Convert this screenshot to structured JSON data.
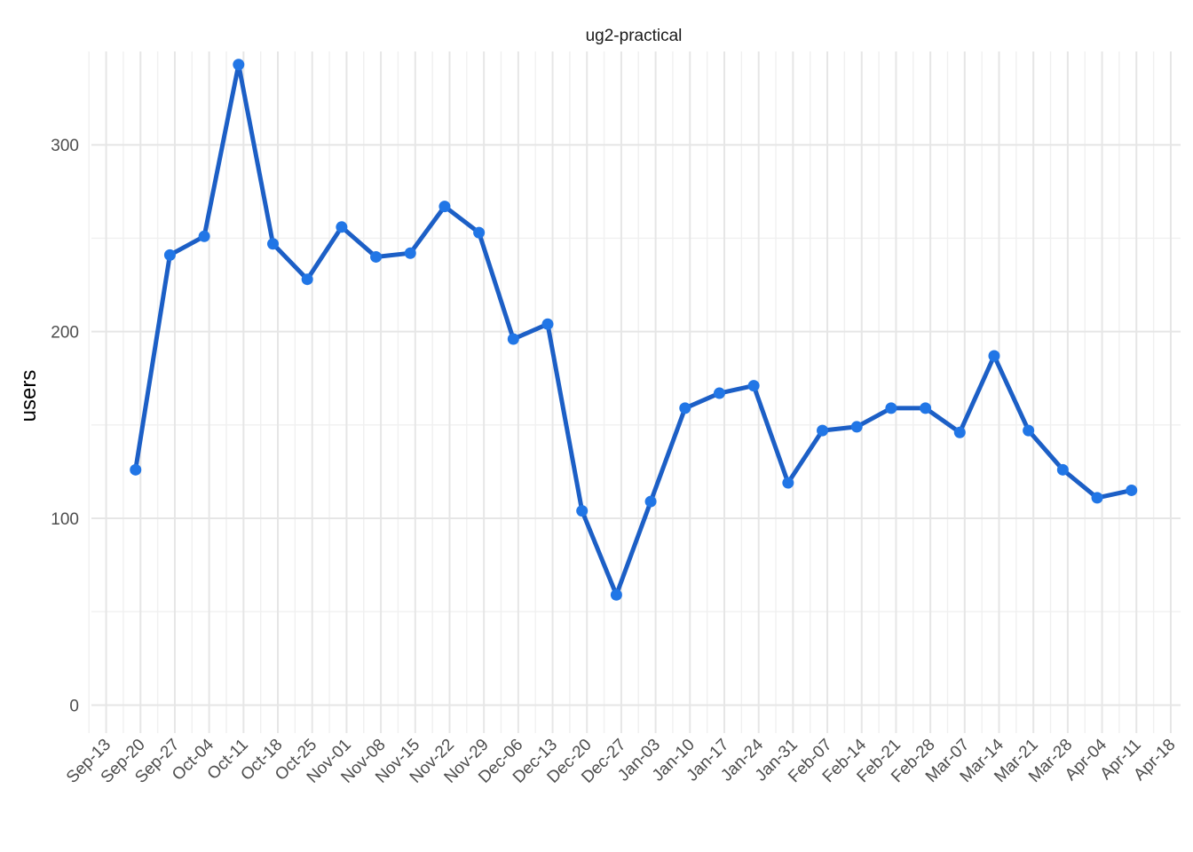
{
  "chart_data": {
    "type": "line",
    "title": "ug2-practical",
    "xlabel": "",
    "ylabel": "users",
    "x_axis_type": "date",
    "xlim": [
      "2020-09-10",
      "2021-04-20"
    ],
    "ylim": [
      -15,
      350
    ],
    "y_ticks": [
      0,
      100,
      200,
      300
    ],
    "x_tick_dates": [
      "2020-09-13",
      "2020-09-20",
      "2020-09-27",
      "2020-10-04",
      "2020-10-11",
      "2020-10-18",
      "2020-10-25",
      "2020-11-01",
      "2020-11-08",
      "2020-11-15",
      "2020-11-22",
      "2020-11-29",
      "2020-12-06",
      "2020-12-13",
      "2020-12-20",
      "2020-12-27",
      "2021-01-03",
      "2021-01-10",
      "2021-01-17",
      "2021-01-24",
      "2021-01-31",
      "2021-02-07",
      "2021-02-14",
      "2021-02-21",
      "2021-02-28",
      "2021-03-07",
      "2021-03-14",
      "2021-03-21",
      "2021-03-28",
      "2021-04-04",
      "2021-04-11",
      "2021-04-18"
    ],
    "x_tick_labels": [
      "Sep-13",
      "Sep-20",
      "Sep-27",
      "Oct-04",
      "Oct-11",
      "Oct-18",
      "Oct-25",
      "Nov-01",
      "Nov-08",
      "Nov-15",
      "Nov-22",
      "Nov-29",
      "Dec-06",
      "Dec-13",
      "Dec-20",
      "Dec-27",
      "Jan-03",
      "Jan-10",
      "Jan-17",
      "Jan-24",
      "Jan-31",
      "Feb-07",
      "Feb-14",
      "Feb-21",
      "Feb-28",
      "Mar-07",
      "Mar-14",
      "Mar-21",
      "Mar-28",
      "Apr-04",
      "Apr-11",
      "Apr-18"
    ],
    "grid": true,
    "legend": "none",
    "colors": {
      "line": "#1c5fc6",
      "point": "#2176e6",
      "grid": "#e6e6e6"
    },
    "series": [
      {
        "x": [
          "2020-09-19",
          "2020-09-26",
          "2020-10-03",
          "2020-10-10",
          "2020-10-17",
          "2020-10-24",
          "2020-10-31",
          "2020-11-07",
          "2020-11-14",
          "2020-11-21",
          "2020-11-28",
          "2020-12-05",
          "2020-12-12",
          "2020-12-19",
          "2020-12-26",
          "2021-01-02",
          "2021-01-09",
          "2021-01-16",
          "2021-01-23",
          "2021-01-30",
          "2021-02-06",
          "2021-02-13",
          "2021-02-20",
          "2021-02-27",
          "2021-03-06",
          "2021-03-13",
          "2021-03-20",
          "2021-03-27",
          "2021-04-03",
          "2021-04-10"
        ],
        "values": [
          126,
          241,
          251,
          343,
          247,
          228,
          256,
          240,
          242,
          267,
          253,
          196,
          204,
          104,
          59,
          109,
          159,
          167,
          171,
          119,
          147,
          149,
          159,
          159,
          146,
          187,
          147,
          126,
          111,
          115
        ]
      }
    ]
  }
}
